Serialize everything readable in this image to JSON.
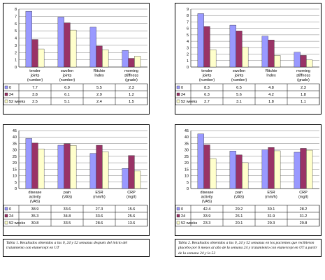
{
  "colors": {
    "s0": "#9999ff",
    "s1": "#993366",
    "s2": "#ffffcc",
    "grid": "#7f7f7f"
  },
  "chart_data": [
    {
      "type": "bar",
      "categories": [
        [
          "tender",
          "joints",
          "(number)"
        ],
        [
          "swollen",
          "joints",
          "(number)"
        ],
        [
          "Ritchie",
          "Index"
        ],
        [
          "morning",
          "stiffness",
          "(grade)"
        ]
      ],
      "series": [
        {
          "name": "0",
          "values": [
            7.7,
            6.9,
            5.5,
            2.3
          ]
        },
        {
          "name": "24",
          "values": [
            3.8,
            6.1,
            2.9,
            1.2
          ]
        },
        {
          "name": "52 weeks",
          "values": [
            2.5,
            5.1,
            2.4,
            1.5
          ]
        }
      ],
      "ylim": [
        0,
        8
      ],
      "yticks": [
        0,
        1,
        2,
        3,
        4,
        5,
        6,
        7,
        8
      ],
      "grid": true
    },
    {
      "type": "bar",
      "categories": [
        [
          "tender",
          "joints",
          "(number)"
        ],
        [
          "swollen",
          "joints",
          "(number)"
        ],
        [
          "Ritchie",
          "Index"
        ],
        [
          "morning",
          "stiffness",
          "(grade)"
        ]
      ],
      "series": [
        {
          "name": "0",
          "values": [
            8.3,
            6.5,
            4.8,
            2.3
          ]
        },
        {
          "name": "24",
          "values": [
            6.3,
            5.6,
            4.2,
            1.8
          ]
        },
        {
          "name": "52 weeks",
          "values": [
            2.7,
            3.1,
            1.8,
            1.1
          ]
        }
      ],
      "ylim": [
        0,
        9
      ],
      "yticks": [
        0,
        1,
        2,
        3,
        4,
        5,
        6,
        7,
        8,
        9
      ],
      "grid": true
    },
    {
      "type": "bar",
      "categories": [
        [
          "disease",
          "activity",
          "(VAS)"
        ],
        [
          "pain",
          "(VAS)"
        ],
        [
          "ESR",
          "(mm/h)"
        ],
        [
          "CRP",
          "(mg/l)"
        ]
      ],
      "series": [
        {
          "name": "0",
          "values": [
            38.9,
            33.6,
            27.3,
            15.6
          ]
        },
        {
          "name": "24",
          "values": [
            35.3,
            34.8,
            33.6,
            25.6
          ]
        },
        {
          "name": "52 weeks",
          "values": [
            30.8,
            33.5,
            28.6,
            13.6
          ]
        }
      ],
      "ylim": [
        0,
        45
      ],
      "yticks": [
        0,
        5,
        10,
        15,
        20,
        25,
        30,
        35,
        40,
        45
      ],
      "grid": true
    },
    {
      "type": "bar",
      "categories": [
        [
          "disease",
          "activity",
          "(VAS)"
        ],
        [
          "pain",
          "(VAS)"
        ],
        [
          "ESR",
          "(mm/h)"
        ],
        [
          "CRP",
          "(mg/l)"
        ]
      ],
      "series": [
        {
          "name": "0",
          "values": [
            42.4,
            29.2,
            30.1,
            28.2
          ]
        },
        {
          "name": "24",
          "values": [
            33.9,
            26.1,
            31.9,
            31.2
          ]
        },
        {
          "name": "52 weeks",
          "values": [
            23.3,
            20.1,
            29.3,
            29.8
          ]
        }
      ],
      "ylim": [
        0,
        45
      ],
      "yticks": [
        0,
        5,
        10,
        15,
        20,
        25,
        30,
        35,
        40,
        45
      ],
      "grid": true
    }
  ],
  "captions": {
    "table1": "Tabla 1. Resultados obtenidos a las 0, 24 y 52 semanas después del inicio del tratamiento con etanercept en UT",
    "table2": "Tabla 2. Resultados obtenidos a las 0, 24 y 52 semanas en los pacientes que recibieron placebo por 6 meses al año de la semana 24 y tratamiento con etanercept en UT a partir de la semana 24 y la 52"
  }
}
